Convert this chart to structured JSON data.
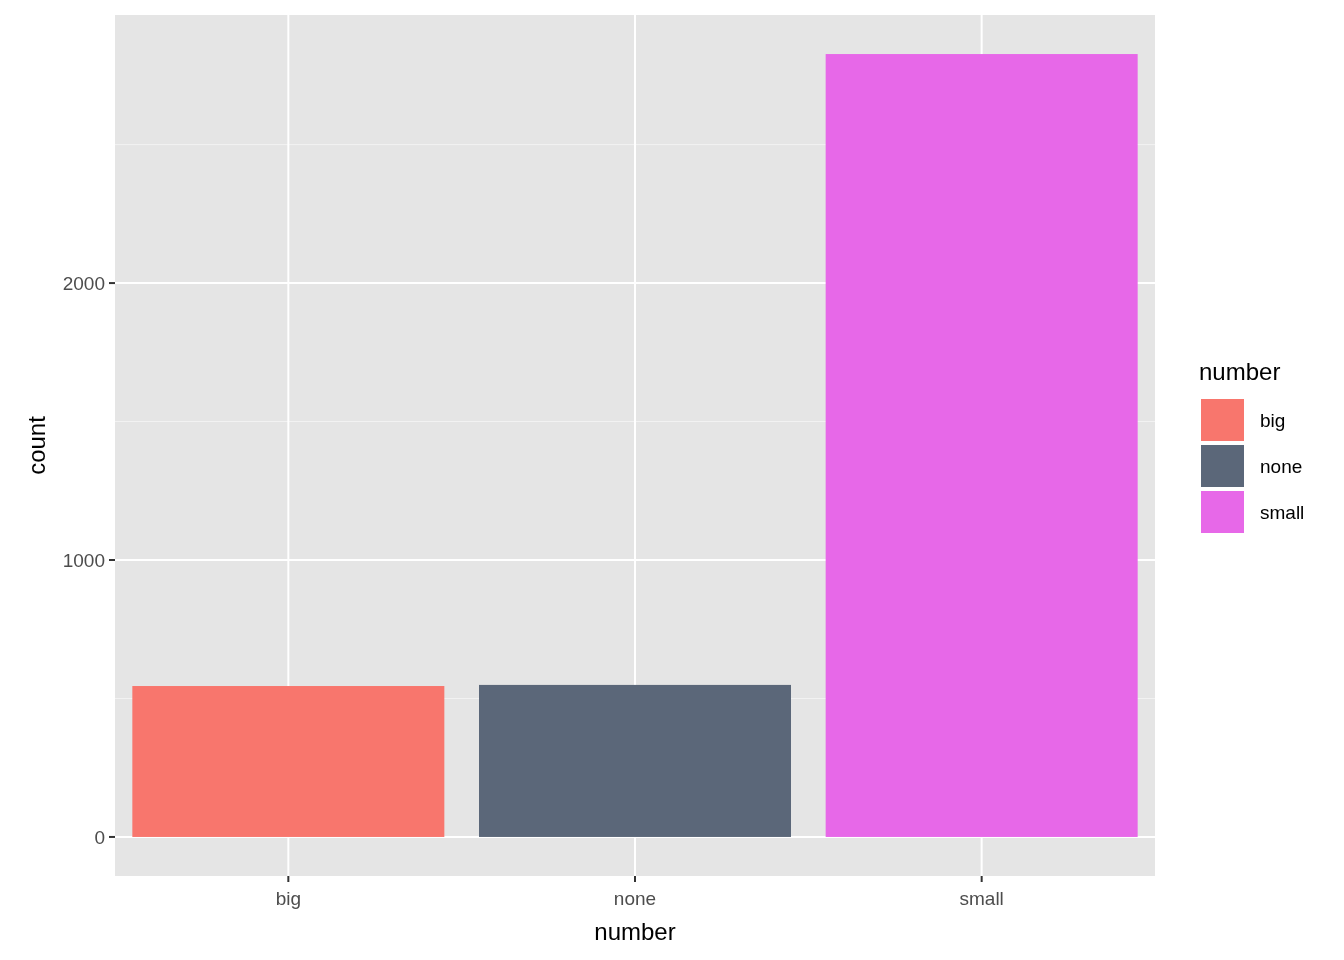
{
  "chart_data": {
    "type": "bar",
    "xlabel": "number",
    "ylabel": "count",
    "legend_title": "number",
    "categories": [
      "big",
      "none",
      "small"
    ],
    "series": [
      {
        "name": "big",
        "color": "#f8766d",
        "values": [
          545,
          null,
          null
        ]
      },
      {
        "name": "none",
        "color": "#5b6779",
        "values": [
          null,
          549,
          null
        ]
      },
      {
        "name": "small",
        "color": "#e768e8",
        "values": [
          null,
          null,
          2827
        ]
      }
    ],
    "ylim": [
      -141,
      2968
    ],
    "yticks": [
      0,
      1000,
      2000
    ],
    "grid": true,
    "legend": "right"
  }
}
